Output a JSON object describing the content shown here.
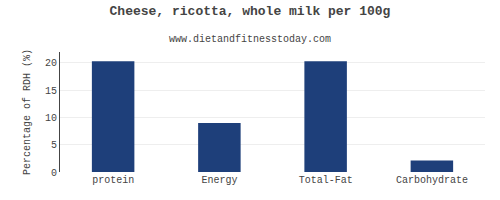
{
  "chart_data": {
    "type": "bar",
    "title": "Cheese, ricotta, whole milk per 100g",
    "subtitle": "www.dietandfitnesstoday.com",
    "categories": [
      "protein",
      "Energy",
      "Total-Fat",
      "Carbohydrate"
    ],
    "values": [
      20.3,
      9.0,
      20.3,
      2.1
    ],
    "color": "#1e3f7a",
    "ylabel": "Percentage of RDH (%)",
    "ylim": [
      0,
      22
    ],
    "yticks": [
      0,
      5,
      10,
      15,
      20
    ],
    "grid": true
  }
}
